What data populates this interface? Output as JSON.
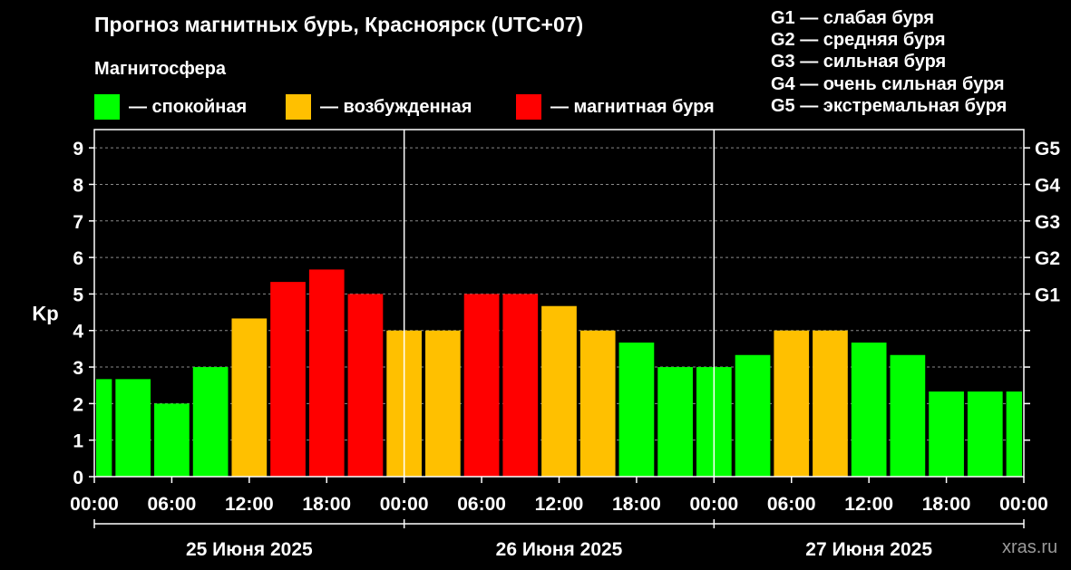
{
  "header": {
    "title": "Прогноз магнитных бурь, Красноярск (UTC+07)",
    "section_label": "Магнитосфера"
  },
  "legend": [
    {
      "label": "— спокойная",
      "color": "#00ff00"
    },
    {
      "label": "— возбужденная",
      "color": "#ffc000"
    },
    {
      "label": "— магнитная буря",
      "color": "#ff0000"
    }
  ],
  "g_scale": [
    "G1 — слабая буря",
    "G2 — средняя буря",
    "G3 — сильная буря",
    "G4 — очень сильная буря",
    "G5 — экстремальная буря"
  ],
  "watermark": "xras.ru",
  "chart_data": {
    "type": "bar",
    "ylabel": "Kp",
    "ylim": [
      0,
      9.5
    ],
    "y_ticks": [
      "0",
      "1",
      "2",
      "3",
      "4",
      "5",
      "6",
      "7",
      "8",
      "9"
    ],
    "right_ticks": [
      {
        "label": "G1",
        "value": 5
      },
      {
        "label": "G2",
        "value": 6
      },
      {
        "label": "G3",
        "value": 7
      },
      {
        "label": "G4",
        "value": 8
      },
      {
        "label": "G5",
        "value": 9
      }
    ],
    "x_tick_labels": [
      "00:00",
      "06:00",
      "12:00",
      "18:00",
      "00:00",
      "06:00",
      "12:00",
      "18:00",
      "00:00",
      "06:00",
      "12:00",
      "18:00",
      "00:00"
    ],
    "date_labels": [
      "25 Июня 2025",
      "26 Июня 2025",
      "27 Июня 2025"
    ],
    "values": [
      2.67,
      2.67,
      2.0,
      3.0,
      4.33,
      5.33,
      5.67,
      5.0,
      4.0,
      4.0,
      5.0,
      5.0,
      4.67,
      4.0,
      3.67,
      3.0,
      3.0,
      3.33,
      4.0,
      4.0,
      3.67,
      3.33,
      2.33,
      2.33,
      2.33
    ],
    "levels": [
      "calm",
      "calm",
      "calm",
      "calm",
      "active",
      "storm",
      "storm",
      "storm",
      "active",
      "active",
      "storm",
      "storm",
      "active",
      "active",
      "calm",
      "calm",
      "calm",
      "calm",
      "active",
      "active",
      "calm",
      "calm",
      "calm",
      "calm",
      "calm"
    ],
    "level_colors": {
      "calm": "#00ff00",
      "active": "#ffc000",
      "storm": "#ff0000"
    },
    "grid": "dashed horizontal",
    "day_separators": true
  }
}
